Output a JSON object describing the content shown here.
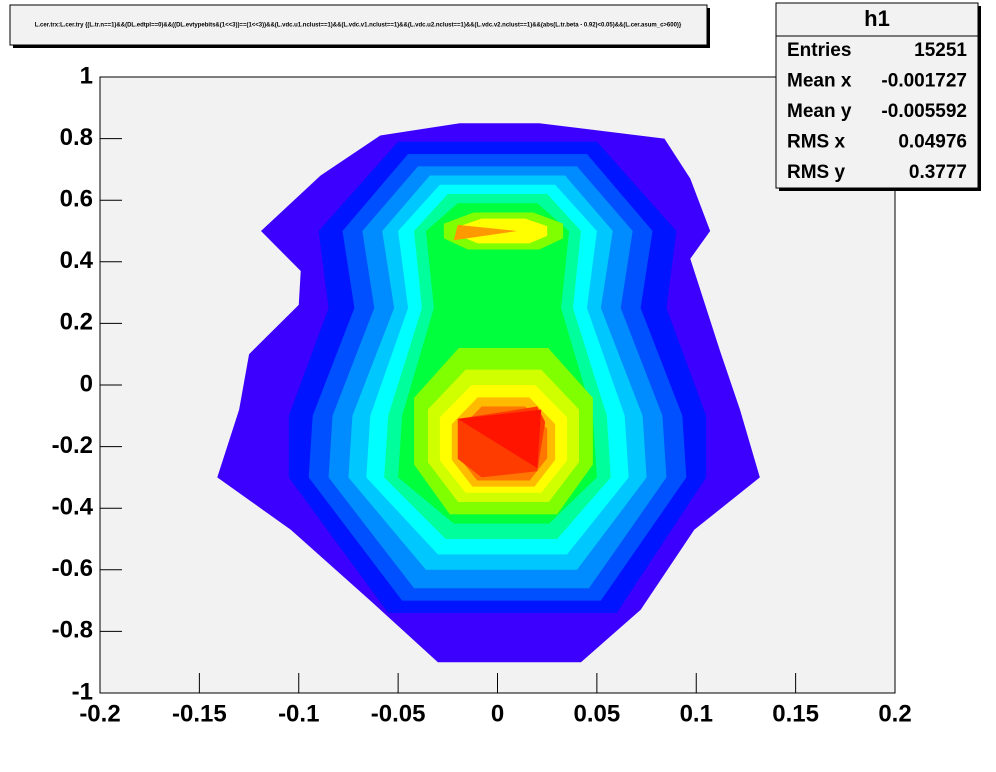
{
  "chart_data": {
    "type": "contour",
    "title": "L.cer.trx:L.cer.try {(L.tr.n==1)&&(DL.edtpl==0)&&((DL.evtypebits&(1<<3))==(1<<3))&&(L.vdc.u1.nclust==1)&&(L.vdc.v1.nclust==1)&&(L.vdc.u2.nclust==1)&&(L.vdc.v2.nclust==1)&&(abs(L.tr.beta - 0.92)<0.05)&&(L.cer.asum_c>600)}",
    "xlim": [
      -0.2,
      0.2
    ],
    "ylim": [
      -1,
      1
    ],
    "xticks": [
      -0.2,
      -0.15,
      -0.1,
      -0.05,
      0,
      0.05,
      0.1,
      0.15,
      0.2
    ],
    "yticks": [
      -1,
      -0.8,
      -0.6,
      -0.4,
      -0.2,
      0,
      0.2,
      0.4,
      0.6,
      0.8,
      1
    ],
    "contours": [
      {
        "color": "#3c00ff",
        "points": [
          [
            -0.03,
            -0.9
          ],
          [
            0.042,
            -0.9
          ],
          [
            0.072,
            -0.73
          ],
          [
            0.099,
            -0.47
          ],
          [
            0.132,
            -0.3
          ],
          [
            0.122,
            -0.08
          ],
          [
            0.112,
            0.11
          ],
          [
            0.097,
            0.41
          ],
          [
            0.107,
            0.5
          ],
          [
            0.097,
            0.67
          ],
          [
            0.084,
            0.8
          ],
          [
            0.021,
            0.85
          ],
          [
            -0.019,
            0.85
          ],
          [
            -0.059,
            0.81
          ],
          [
            -0.089,
            0.68
          ],
          [
            -0.119,
            0.5
          ],
          [
            -0.099,
            0.37
          ],
          [
            -0.1,
            0.26
          ],
          [
            -0.125,
            0.1
          ],
          [
            -0.13,
            -0.08
          ],
          [
            -0.141,
            -0.3
          ],
          [
            -0.104,
            -0.47
          ],
          [
            -0.064,
            -0.7
          ]
        ]
      },
      {
        "color": "#0014ff",
        "points": [
          [
            -0.055,
            -0.74
          ],
          [
            0.06,
            -0.74
          ],
          [
            0.105,
            -0.3
          ],
          [
            0.105,
            -0.1
          ],
          [
            0.085,
            0.25
          ],
          [
            0.09,
            0.5
          ],
          [
            0.05,
            0.79
          ],
          [
            -0.05,
            0.79
          ],
          [
            -0.09,
            0.5
          ],
          [
            -0.085,
            0.25
          ],
          [
            -0.105,
            -0.1
          ],
          [
            -0.105,
            -0.3
          ]
        ]
      },
      {
        "color": "#0050ff",
        "points": [
          [
            -0.048,
            -0.7
          ],
          [
            0.052,
            -0.7
          ],
          [
            0.095,
            -0.3
          ],
          [
            0.093,
            -0.1
          ],
          [
            0.072,
            0.25
          ],
          [
            0.078,
            0.5
          ],
          [
            0.045,
            0.75
          ],
          [
            -0.045,
            0.75
          ],
          [
            -0.078,
            0.5
          ],
          [
            -0.072,
            0.25
          ],
          [
            -0.093,
            -0.1
          ],
          [
            -0.095,
            -0.3
          ]
        ]
      },
      {
        "color": "#008cff",
        "points": [
          [
            -0.042,
            -0.66
          ],
          [
            0.046,
            -0.66
          ],
          [
            0.085,
            -0.3
          ],
          [
            0.083,
            -0.1
          ],
          [
            0.062,
            0.25
          ],
          [
            0.068,
            0.5
          ],
          [
            0.04,
            0.71
          ],
          [
            -0.04,
            0.71
          ],
          [
            -0.068,
            0.5
          ],
          [
            -0.062,
            0.25
          ],
          [
            -0.083,
            -0.1
          ],
          [
            -0.085,
            -0.3
          ]
        ]
      },
      {
        "color": "#00c8ff",
        "points": [
          [
            -0.036,
            -0.6
          ],
          [
            0.04,
            -0.6
          ],
          [
            0.075,
            -0.3
          ],
          [
            0.073,
            -0.1
          ],
          [
            0.052,
            0.25
          ],
          [
            0.058,
            0.5
          ],
          [
            0.034,
            0.68
          ],
          [
            -0.034,
            0.68
          ],
          [
            -0.058,
            0.5
          ],
          [
            -0.052,
            0.25
          ],
          [
            -0.073,
            -0.1
          ],
          [
            -0.075,
            -0.3
          ]
        ]
      },
      {
        "color": "#00ffff",
        "points": [
          [
            -0.03,
            -0.55
          ],
          [
            0.035,
            -0.55
          ],
          [
            0.066,
            -0.3
          ],
          [
            0.064,
            -0.1
          ],
          [
            0.045,
            0.25
          ],
          [
            0.05,
            0.5
          ],
          [
            0.029,
            0.65
          ],
          [
            -0.029,
            0.65
          ],
          [
            -0.05,
            0.5
          ],
          [
            -0.045,
            0.25
          ],
          [
            -0.064,
            -0.1
          ],
          [
            -0.066,
            -0.3
          ]
        ]
      },
      {
        "color": "#00ff9c",
        "points": [
          [
            -0.026,
            -0.5
          ],
          [
            0.03,
            -0.5
          ],
          [
            0.057,
            -0.3
          ],
          [
            0.055,
            -0.1
          ],
          [
            0.038,
            0.25
          ],
          [
            0.042,
            0.5
          ],
          [
            0.025,
            0.62
          ],
          [
            -0.025,
            0.62
          ],
          [
            -0.042,
            0.5
          ],
          [
            -0.038,
            0.25
          ],
          [
            -0.055,
            -0.1
          ],
          [
            -0.057,
            -0.3
          ]
        ]
      },
      {
        "color": "#00ff3c",
        "points": [
          [
            -0.022,
            -0.45
          ],
          [
            0.026,
            -0.45
          ],
          [
            0.05,
            -0.3
          ],
          [
            0.048,
            -0.1
          ],
          [
            0.032,
            0.25
          ],
          [
            0.036,
            0.5
          ],
          [
            0.02,
            0.59
          ],
          [
            -0.02,
            0.59
          ],
          [
            -0.036,
            0.5
          ],
          [
            -0.032,
            0.25
          ],
          [
            -0.048,
            -0.1
          ],
          [
            -0.05,
            -0.3
          ]
        ]
      },
      {
        "color": "#7fff00",
        "points": [
          [
            -0.024,
            -0.42
          ],
          [
            0.03,
            -0.42
          ],
          [
            0.048,
            -0.258
          ],
          [
            0.048,
            -0.042
          ],
          [
            0.0255,
            0.12
          ],
          [
            -0.0195,
            0.12
          ],
          [
            -0.042,
            -0.042
          ],
          [
            -0.042,
            -0.258
          ]
        ]
      },
      {
        "color": "#7fff00",
        "points": [
          [
            -0.015,
            0.44
          ],
          [
            0.021,
            0.44
          ],
          [
            0.033,
            0.476
          ],
          [
            0.033,
            0.524
          ],
          [
            0.018,
            0.56
          ],
          [
            -0.012,
            0.56
          ],
          [
            -0.027,
            0.524
          ],
          [
            -0.027,
            0.476
          ]
        ]
      },
      {
        "color": "#d0ff00",
        "points": [
          [
            -0.0198,
            -0.38
          ],
          [
            0.0258,
            -0.38
          ],
          [
            0.041,
            -0.251
          ],
          [
            0.041,
            -0.079
          ],
          [
            0.022,
            0.05
          ],
          [
            -0.016,
            0.05
          ],
          [
            -0.035,
            -0.079
          ],
          [
            -0.035,
            -0.251
          ]
        ]
      },
      {
        "color": "#ffff00",
        "points": [
          [
            -0.01,
            0.46
          ],
          [
            0.016,
            0.46
          ],
          [
            0.025,
            0.484
          ],
          [
            0.025,
            0.516
          ],
          [
            0.014,
            0.54
          ],
          [
            -0.008,
            0.54
          ],
          [
            -0.019,
            0.516
          ],
          [
            -0.019,
            0.484
          ]
        ]
      },
      {
        "color": "#ffff00",
        "points": [
          [
            -0.016,
            -0.35
          ],
          [
            0.022,
            -0.35
          ],
          [
            0.035,
            -0.245
          ],
          [
            0.035,
            -0.105
          ],
          [
            0.019,
            0
          ],
          [
            -0.013,
            0
          ],
          [
            -0.029,
            -0.105
          ],
          [
            -0.029,
            -0.245
          ]
        ]
      },
      {
        "color": "#ffbb00",
        "points": [
          [
            -0.0126,
            -0.33
          ],
          [
            0.0186,
            -0.33
          ],
          [
            0.029,
            -0.243
          ],
          [
            0.029,
            -0.127
          ],
          [
            0.016,
            -0.04
          ],
          [
            -0.01,
            -0.04
          ],
          [
            -0.023,
            -0.127
          ],
          [
            -0.023,
            -0.243
          ]
        ]
      },
      {
        "color": "#ff9900",
        "points": [
          [
            -0.022,
            0.47
          ],
          [
            0.01,
            0.5
          ],
          [
            -0.02,
            0.52
          ]
        ]
      },
      {
        "color": "#ff7700",
        "points": [
          [
            -0.0102,
            -0.31
          ],
          [
            0.0162,
            -0.31
          ],
          [
            0.025,
            -0.238
          ],
          [
            0.025,
            -0.142
          ],
          [
            0.014,
            -0.07
          ],
          [
            -0.008,
            -0.07
          ],
          [
            -0.019,
            -0.142
          ],
          [
            -0.019,
            -0.238
          ]
        ]
      },
      {
        "color": "#ff3c00",
        "points": [
          [
            -0.008,
            -0.3
          ],
          [
            0.02,
            -0.28
          ],
          [
            0.024,
            -0.12
          ],
          [
            0.02,
            -0.07
          ],
          [
            -0.02,
            -0.11
          ],
          [
            -0.02,
            -0.24
          ]
        ]
      },
      {
        "color": "#ff1400",
        "points": [
          [
            -0.02,
            -0.11
          ],
          [
            0.022,
            -0.08
          ],
          [
            0.02,
            -0.27
          ]
        ]
      }
    ],
    "stats": {
      "name": "h1",
      "rows": [
        [
          "Entries",
          "15251"
        ],
        [
          "Mean x",
          "-0.001727"
        ],
        [
          "Mean y",
          "-0.005592"
        ],
        [
          "RMS x",
          "0.04976"
        ],
        [
          "RMS y",
          "0.3777"
        ]
      ]
    }
  }
}
